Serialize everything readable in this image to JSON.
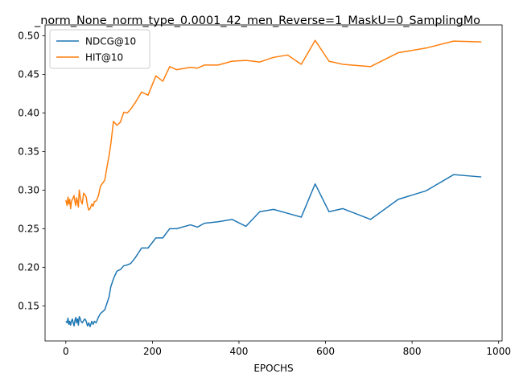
{
  "chart_data": {
    "type": "line",
    "title": "_norm_None_norm_type_0.0001_42_men_Reverse=1_MaskU=0_SamplingMo",
    "xlabel": "EPOCHS",
    "ylabel": "",
    "xlim": [
      -48,
      1008
    ],
    "ylim": [
      0.1045,
      0.514
    ],
    "xticks": [
      0,
      200,
      400,
      600,
      800,
      1000
    ],
    "xtick_labels": [
      "0",
      "200",
      "400",
      "600",
      "800",
      "1000"
    ],
    "yticks": [
      0.15,
      0.2,
      0.25,
      0.3,
      0.35,
      0.4,
      0.45,
      0.5
    ],
    "ytick_labels": [
      "0.15",
      "0.20",
      "0.25",
      "0.30",
      "0.35",
      "0.40",
      "0.45",
      "0.50"
    ],
    "grid": false,
    "legend_position": "upper-left",
    "series": [
      {
        "name": "NDCG@10",
        "color": "#1f77b4",
        "x": [
          0,
          3,
          5,
          7,
          9,
          11,
          13,
          15,
          17,
          19,
          21,
          23,
          25,
          27,
          29,
          31,
          33,
          35,
          38,
          41,
          44,
          47,
          50,
          53,
          56,
          60,
          63,
          66,
          70,
          75,
          80,
          90,
          96,
          100,
          104,
          110,
          118,
          126,
          134,
          142,
          150,
          160,
          175,
          190,
          208,
          224,
          240,
          256,
          288,
          304,
          320,
          352,
          384,
          416,
          448,
          480,
          512,
          544,
          576,
          608,
          640,
          704,
          768,
          832,
          896,
          960
        ],
        "y": [
          0.13,
          0.128,
          0.134,
          0.126,
          0.13,
          0.125,
          0.13,
          0.133,
          0.128,
          0.124,
          0.131,
          0.135,
          0.128,
          0.133,
          0.125,
          0.136,
          0.134,
          0.13,
          0.128,
          0.131,
          0.133,
          0.13,
          0.124,
          0.128,
          0.123,
          0.13,
          0.126,
          0.13,
          0.128,
          0.135,
          0.14,
          0.145,
          0.155,
          0.162,
          0.175,
          0.185,
          0.195,
          0.197,
          0.202,
          0.203,
          0.205,
          0.212,
          0.225,
          0.225,
          0.238,
          0.238,
          0.25,
          0.25,
          0.255,
          0.252,
          0.257,
          0.259,
          0.262,
          0.253,
          0.272,
          0.275,
          0.27,
          0.265,
          0.308,
          0.272,
          0.276,
          0.262,
          0.288,
          0.299,
          0.32,
          0.317
        ]
      },
      {
        "name": "HIT@10",
        "color": "#ff7f0e",
        "x": [
          0,
          3,
          5,
          7,
          9,
          11,
          13,
          15,
          17,
          19,
          21,
          23,
          25,
          27,
          29,
          31,
          33,
          35,
          38,
          41,
          44,
          47,
          50,
          53,
          56,
          60,
          63,
          66,
          70,
          75,
          80,
          90,
          96,
          100,
          104,
          110,
          118,
          126,
          134,
          142,
          150,
          160,
          175,
          190,
          208,
          224,
          240,
          256,
          288,
          304,
          320,
          352,
          384,
          416,
          448,
          480,
          512,
          544,
          576,
          608,
          640,
          704,
          768,
          832,
          896,
          960
        ],
        "y": [
          0.287,
          0.28,
          0.291,
          0.282,
          0.288,
          0.276,
          0.285,
          0.288,
          0.29,
          0.293,
          0.285,
          0.28,
          0.29,
          0.285,
          0.278,
          0.3,
          0.292,
          0.286,
          0.282,
          0.296,
          0.294,
          0.291,
          0.28,
          0.274,
          0.276,
          0.282,
          0.279,
          0.285,
          0.286,
          0.292,
          0.305,
          0.313,
          0.333,
          0.345,
          0.36,
          0.389,
          0.384,
          0.388,
          0.401,
          0.4,
          0.405,
          0.413,
          0.427,
          0.423,
          0.448,
          0.441,
          0.46,
          0.456,
          0.459,
          0.458,
          0.462,
          0.462,
          0.467,
          0.468,
          0.466,
          0.472,
          0.475,
          0.463,
          0.494,
          0.467,
          0.463,
          0.46,
          0.478,
          0.484,
          0.493,
          0.492
        ]
      }
    ]
  }
}
